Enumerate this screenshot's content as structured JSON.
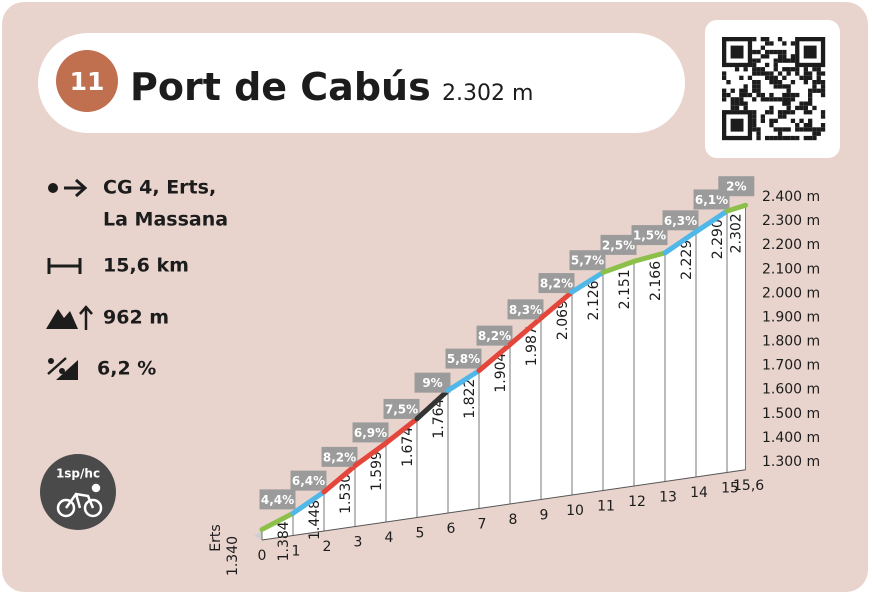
{
  "header": {
    "number": "11",
    "title": "Port de Cabús",
    "altitude": "2.302 m"
  },
  "stats": {
    "start": [
      "CG 4, Erts,",
      "La Massana"
    ],
    "distance": "15,6 km",
    "elevation_gain": "962 m",
    "average_gradient": "6,2 %"
  },
  "badge": "1sp/hc",
  "chart_data": {
    "type": "profile",
    "start_label": "Erts",
    "x": [
      0,
      1,
      2,
      3,
      4,
      5,
      6,
      7,
      8,
      9,
      10,
      11,
      12,
      13,
      14,
      15,
      15.6
    ],
    "values": [
      1340,
      1384,
      1448,
      1530,
      1599,
      1674,
      1764,
      1822,
      1904,
      1987,
      2069,
      2126,
      2151,
      2166,
      2229,
      2290,
      2302
    ],
    "value_labels": [
      "1.340",
      "1.384",
      "1.448",
      "1.530",
      "1.599",
      "1.674",
      "1.764",
      "1.822",
      "1.904",
      "1.987",
      "2.069",
      "2.126",
      "2.151",
      "2.166",
      "2.229",
      "2.290",
      "2.302"
    ],
    "gradients": [
      4.4,
      6.4,
      8.2,
      6.9,
      7.5,
      9,
      5.8,
      8.2,
      8.3,
      8.2,
      5.7,
      2.5,
      1.5,
      6.3,
      6.1,
      2
    ],
    "gradient_labels": [
      "4,4%",
      "6,4%",
      "8,2%",
      "6,9%",
      "7,5%",
      "9%",
      "5,8%",
      "8,2%",
      "8,3%",
      "8,2%",
      "5,7%",
      "2,5%",
      "1,5%",
      "6,3%",
      "6,1%",
      "2%"
    ],
    "segment_colors": [
      "#8dc04a",
      "#4fb8e8",
      "#e5463c",
      "#e5463c",
      "#e5463c",
      "#333333",
      "#4fb8e8",
      "#e5463c",
      "#e5463c",
      "#e5463c",
      "#4fb8e8",
      "#8dc04a",
      "#8dc04a",
      "#4fb8e8",
      "#4fb8e8",
      "#8dc04a"
    ],
    "xticks": [
      0,
      1,
      2,
      3,
      4,
      5,
      6,
      7,
      8,
      9,
      10,
      11,
      12,
      13,
      14,
      15,
      {
        "value": 15.6,
        "label": "15,6"
      }
    ],
    "ylim": [
      1300,
      2400
    ],
    "yticks": [
      {
        "value": 1300,
        "label": "1.300 m"
      },
      {
        "value": 1400,
        "label": "1.400 m"
      },
      {
        "value": 1500,
        "label": "1.500 m"
      },
      {
        "value": 1600,
        "label": "1.600 m"
      },
      {
        "value": 1700,
        "label": "1.700 m"
      },
      {
        "value": 1800,
        "label": "1.800 m"
      },
      {
        "value": 1900,
        "label": "1.900 m"
      },
      {
        "value": 2000,
        "label": "2.000 m"
      },
      {
        "value": 2100,
        "label": "2.100 m"
      },
      {
        "value": 2200,
        "label": "2.200 m"
      },
      {
        "value": 2300,
        "label": "2.300 m"
      },
      {
        "value": 2400,
        "label": "2.400 m"
      }
    ]
  }
}
